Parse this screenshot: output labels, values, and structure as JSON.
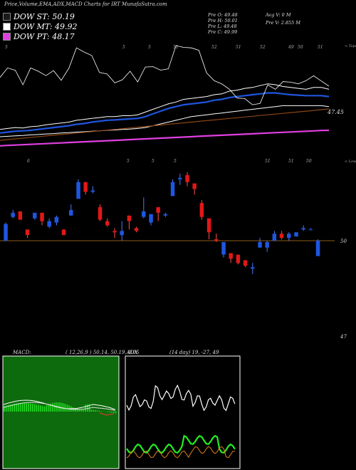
{
  "title": "Price,Volume,EMA,ADX,MACD Charts for IRT MunafaSutra.com",
  "legend": [
    {
      "label": "DOW ST: 50.19",
      "color": "#1a1a1a"
    },
    {
      "label": "DOW MT: 49.92",
      "color": "#ffffff"
    },
    {
      "label": "DOW PT: 48.17",
      "color": "#e040e0"
    }
  ],
  "ohlc": {
    "open": "Pre  O: 49.48",
    "high": "Pre  H: 50.01",
    "low": "Pre  L: 49.48",
    "close": "Pre  C: 49.99",
    "avg_vol": "Avg V: 0  M",
    "pre_vol": "Pre  V: 2.855 M"
  },
  "top_axis_label": "< Tops",
  "lows_axis_label": "< Lows",
  "price_level_label": "47.45",
  "candle_level_label": "50",
  "bottom_level_label": "47",
  "tops_ticks": [
    "5",
    "5",
    "5",
    "51",
    "52",
    "51",
    "52",
    "49",
    "50",
    "51"
  ],
  "lows_ticks": [
    "6",
    "5",
    "5",
    "5",
    "51",
    "51",
    "50"
  ],
  "macd_label": "MACD:",
  "macd_values": "( 12,26,9 ) 50.14,  50.19,  0.05",
  "adx_label": "ADX",
  "adx_values": "(14  day) 19,  -27,  49",
  "colors": {
    "up": "#1e56e0",
    "down": "#e01818",
    "ema_blue": "#1e56e0",
    "ema_pink": "#e040e0",
    "macd_bg": "#0d6b0d",
    "macd_hist": "#22dd22"
  },
  "chart_data": [
    {
      "type": "candlestick",
      "y_reference": 50,
      "candles": [
        {
          "o": 50.0,
          "c": 50.6,
          "h": 50.65,
          "l": 50.0
        },
        {
          "o": 50.85,
          "c": 51.0,
          "h": 51.1,
          "l": 50.8
        },
        {
          "o": 51.05,
          "c": 50.75,
          "h": 51.05,
          "l": 50.75
        },
        {
          "o": 50.4,
          "c": 50.2,
          "h": 50.4,
          "l": 50.1
        },
        {
          "o": 50.8,
          "c": 51.0,
          "h": 51.0,
          "l": 50.75
        },
        {
          "o": 51.0,
          "c": 50.7,
          "h": 51.0,
          "l": 50.55
        },
        {
          "o": 50.5,
          "c": 50.7,
          "h": 50.8,
          "l": 50.45
        },
        {
          "o": 50.65,
          "c": 50.85,
          "h": 50.9,
          "l": 50.55
        },
        {
          "o": 50.4,
          "c": 50.2,
          "h": 50.4,
          "l": 50.2
        },
        {
          "o": 50.9,
          "c": 51.1,
          "h": 51.3,
          "l": 50.9
        },
        {
          "o": 51.5,
          "c": 52.1,
          "h": 52.2,
          "l": 51.5
        },
        {
          "o": 52.1,
          "c": 51.75,
          "h": 52.1,
          "l": 51.65
        },
        {
          "o": 51.75,
          "c": 51.8,
          "h": 51.95,
          "l": 51.7
        },
        {
          "o": 51.2,
          "c": 50.75,
          "h": 51.3,
          "l": 50.7
        },
        {
          "o": 50.7,
          "c": 50.55,
          "h": 50.8,
          "l": 50.5
        },
        {
          "o": 50.35,
          "c": 50.3,
          "h": 50.45,
          "l": 50.1
        },
        {
          "o": 50.2,
          "c": 50.35,
          "h": 50.7,
          "l": 50.0
        },
        {
          "o": 50.9,
          "c": 50.7,
          "h": 50.9,
          "l": 50.4
        },
        {
          "o": 50.45,
          "c": 50.35,
          "h": 50.5,
          "l": 50.3
        },
        {
          "o": 50.85,
          "c": 51.05,
          "h": 51.55,
          "l": 50.8
        },
        {
          "o": 50.65,
          "c": 50.95,
          "h": 50.95,
          "l": 50.55
        },
        {
          "o": 51.2,
          "c": 51.0,
          "h": 51.2,
          "l": 50.7
        },
        {
          "o": 50.9,
          "c": 50.95,
          "h": 51.0,
          "l": 50.85
        },
        {
          "o": 51.6,
          "c": 52.1,
          "h": 52.2,
          "l": 51.6
        },
        {
          "o": 52.2,
          "c": 52.25,
          "h": 52.4,
          "l": 52.0
        },
        {
          "o": 52.35,
          "c": 52.1,
          "h": 52.45,
          "l": 51.95
        },
        {
          "o": 52.05,
          "c": 51.85,
          "h": 52.05,
          "l": 51.65
        },
        {
          "o": 51.35,
          "c": 50.85,
          "h": 51.45,
          "l": 50.75
        },
        {
          "o": 50.8,
          "c": 50.3,
          "h": 50.8,
          "l": 50.05
        },
        {
          "o": 50.05,
          "c": 50.0,
          "h": 50.25,
          "l": 49.95
        },
        {
          "o": 49.5,
          "c": 49.95,
          "h": 49.95,
          "l": 49.4
        },
        {
          "o": 49.55,
          "c": 49.35,
          "h": 49.55,
          "l": 49.2
        },
        {
          "o": 49.5,
          "c": 49.2,
          "h": 49.5,
          "l": 49.15
        },
        {
          "o": 49.3,
          "c": 49.1,
          "h": 49.3,
          "l": 49.05
        },
        {
          "o": 49.0,
          "c": 49.05,
          "h": 49.2,
          "l": 48.8
        },
        {
          "o": 49.75,
          "c": 49.95,
          "h": 50.1,
          "l": 49.75
        },
        {
          "o": 49.75,
          "c": 49.95,
          "h": 50.0,
          "l": 49.6
        },
        {
          "o": 50.0,
          "c": 50.25,
          "h": 50.35,
          "l": 50.0
        },
        {
          "o": 50.25,
          "c": 50.1,
          "h": 50.35,
          "l": 50.05
        },
        {
          "o": 50.1,
          "c": 50.25,
          "h": 50.3,
          "l": 50.0
        },
        {
          "o": 50.15,
          "c": 50.3,
          "h": 50.3,
          "l": 50.15
        },
        {
          "o": 50.4,
          "c": 50.45,
          "h": 50.55,
          "l": 50.35
        },
        {
          "o": 50.4,
          "c": 50.4,
          "h": 50.45,
          "l": 50.4
        },
        {
          "o": 49.45,
          "c": 50.0,
          "h": 50.05,
          "l": 49.45
        }
      ]
    },
    {
      "type": "line",
      "name_none": true,
      "series": [
        {
          "color": "#ffffff",
          "values": [
            48.2,
            48.25,
            48.3,
            48.28,
            48.35,
            48.38,
            48.45,
            48.5,
            48.55,
            48.6,
            48.7,
            48.75,
            48.8,
            48.85,
            48.9,
            48.9,
            48.95,
            48.95,
            49.0,
            49.15,
            49.3,
            49.45,
            49.6,
            49.7,
            49.85,
            49.9,
            49.95,
            50.0,
            50.1,
            50.15,
            50.3,
            50.35,
            50.45,
            50.5,
            50.6,
            50.7,
            50.65,
            50.55,
            50.5,
            50.45,
            50.4,
            50.5,
            50.5,
            50.4
          ]
        },
        {
          "color": "#1e56e0",
          "values": [
            48.0,
            48.05,
            48.1,
            48.12,
            48.15,
            48.2,
            48.25,
            48.3,
            48.35,
            48.4,
            48.48,
            48.52,
            48.6,
            48.65,
            48.7,
            48.72,
            48.75,
            48.78,
            48.8,
            48.9,
            49.05,
            49.2,
            49.35,
            49.45,
            49.55,
            49.6,
            49.65,
            49.7,
            49.8,
            49.85,
            49.95,
            50.0,
            50.05,
            50.1,
            50.15,
            50.2,
            50.2,
            50.15,
            50.1,
            50.08,
            50.05,
            50.05,
            50.05,
            50.0
          ]
        },
        {
          "color": "#ffffff",
          "values": [
            47.8,
            47.82,
            47.85,
            47.87,
            47.9,
            47.92,
            47.95,
            47.97,
            48.0,
            48.02,
            48.05,
            48.07,
            48.1,
            48.12,
            48.15,
            48.17,
            48.2,
            48.22,
            48.25,
            48.3,
            48.4,
            48.5,
            48.6,
            48.7,
            48.8,
            48.9,
            48.95,
            49.0,
            49.05,
            49.1,
            49.15,
            49.2,
            49.25,
            49.3,
            49.35,
            49.4,
            49.45,
            49.5,
            49.5,
            49.5,
            49.5,
            49.5,
            49.5,
            49.45
          ]
        },
        {
          "color": "#e040e0",
          "values": [
            47.3,
            47.32,
            47.34,
            47.36,
            47.38,
            47.4,
            47.42,
            47.44,
            47.46,
            47.48,
            47.5,
            47.52,
            47.54,
            47.56,
            47.58,
            47.6,
            47.62,
            47.64,
            47.66,
            47.68,
            47.7,
            47.72,
            47.74,
            47.76,
            47.78,
            47.8,
            47.82,
            47.84,
            47.86,
            47.88,
            47.9,
            47.92,
            47.94,
            47.96,
            47.98,
            48.0,
            48.02,
            48.04,
            48.06,
            48.08,
            48.1,
            48.12,
            48.14,
            48.15
          ]
        }
      ]
    }
  ]
}
